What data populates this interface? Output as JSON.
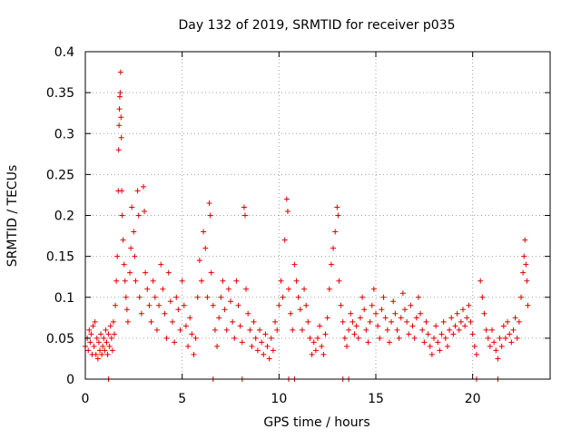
{
  "chart_data": {
    "type": "scatter",
    "title": "Day 132 of 2019, SRMTID for receiver p035",
    "xlabel": "GPS time / hours",
    "ylabel": "SRMTID / TECUs",
    "xlim": [
      0,
      24
    ],
    "ylim": [
      0,
      0.4
    ],
    "xticks": [
      0,
      5,
      10,
      15,
      20
    ],
    "yticks": [
      0,
      0.05,
      0.1,
      0.15,
      0.2,
      0.25,
      0.3,
      0.35,
      0.4
    ],
    "grid": true,
    "marker": "+",
    "color": "#e00000",
    "x_tick_labels": [
      "0",
      "5",
      "10",
      "15",
      "20"
    ],
    "y_tick_labels": [
      "0",
      "0.05",
      "0.1",
      "0.15",
      "0.2",
      "0.25",
      "0.3",
      "0.35",
      "0.4"
    ],
    "series": [
      {
        "name": "p035",
        "points": [
          [
            0.0,
            0.04
          ],
          [
            0.1,
            0.05
          ],
          [
            0.15,
            0.035
          ],
          [
            0.2,
            0.06
          ],
          [
            0.25,
            0.045
          ],
          [
            0.3,
            0.055
          ],
          [
            0.35,
            0.03
          ],
          [
            0.4,
            0.065
          ],
          [
            0.45,
            0.04
          ],
          [
            0.5,
            0.07
          ],
          [
            0.55,
            0.03
          ],
          [
            0.6,
            0.05
          ],
          [
            0.65,
            0.025
          ],
          [
            0.7,
            0.045
          ],
          [
            0.75,
            0.035
          ],
          [
            0.8,
            0.055
          ],
          [
            0.85,
            0.03
          ],
          [
            0.9,
            0.04
          ],
          [
            0.95,
            0.05
          ],
          [
            1.0,
            0.035
          ],
          [
            1.05,
            0.06
          ],
          [
            1.1,
            0.045
          ],
          [
            1.15,
            0.03
          ],
          [
            1.2,
            0.055
          ],
          [
            1.25,
            0.04
          ],
          [
            1.3,
            0.065
          ],
          [
            1.35,
            0.05
          ],
          [
            1.4,
            0.035
          ],
          [
            1.45,
            0.07
          ],
          [
            1.5,
            0.055
          ],
          [
            1.55,
            0.09
          ],
          [
            1.6,
            0.12
          ],
          [
            1.65,
            0.15
          ],
          [
            1.7,
            0.23
          ],
          [
            1.72,
            0.28
          ],
          [
            1.74,
            0.31
          ],
          [
            1.76,
            0.33
          ],
          [
            1.78,
            0.345
          ],
          [
            1.8,
            0.35
          ],
          [
            1.82,
            0.375
          ],
          [
            1.84,
            0.32
          ],
          [
            1.86,
            0.295
          ],
          [
            1.88,
            0.23
          ],
          [
            1.9,
            0.2
          ],
          [
            1.95,
            0.17
          ],
          [
            2.0,
            0.14
          ],
          [
            2.05,
            0.12
          ],
          [
            2.1,
            0.1
          ],
          [
            2.15,
            0.085
          ],
          [
            2.2,
            0.07
          ],
          [
            2.3,
            0.13
          ],
          [
            2.35,
            0.16
          ],
          [
            2.4,
            0.21
          ],
          [
            2.5,
            0.18
          ],
          [
            2.55,
            0.15
          ],
          [
            2.6,
            0.12
          ],
          [
            2.7,
            0.23
          ],
          [
            2.75,
            0.2
          ],
          [
            2.8,
            0.1
          ],
          [
            2.9,
            0.08
          ],
          [
            3.0,
            0.235
          ],
          [
            3.05,
            0.205
          ],
          [
            3.1,
            0.13
          ],
          [
            3.2,
            0.11
          ],
          [
            3.3,
            0.09
          ],
          [
            3.4,
            0.07
          ],
          [
            3.5,
            0.12
          ],
          [
            3.6,
            0.1
          ],
          [
            3.7,
            0.06
          ],
          [
            3.8,
            0.09
          ],
          [
            3.9,
            0.14
          ],
          [
            4.0,
            0.11
          ],
          [
            4.1,
            0.08
          ],
          [
            4.2,
            0.05
          ],
          [
            4.3,
            0.13
          ],
          [
            4.4,
            0.095
          ],
          [
            4.5,
            0.07
          ],
          [
            4.6,
            0.045
          ],
          [
            4.7,
            0.1
          ],
          [
            4.8,
            0.085
          ],
          [
            4.9,
            0.06
          ],
          [
            5.0,
            0.12
          ],
          [
            5.1,
            0.09
          ],
          [
            5.2,
            0.065
          ],
          [
            5.3,
            0.04
          ],
          [
            5.4,
            0.075
          ],
          [
            5.5,
            0.055
          ],
          [
            5.6,
            0.03
          ],
          [
            5.7,
            0.05
          ],
          [
            5.8,
            0.1
          ],
          [
            5.9,
            0.145
          ],
          [
            6.0,
            0.12
          ],
          [
            6.1,
            0.18
          ],
          [
            6.2,
            0.16
          ],
          [
            6.3,
            0.1
          ],
          [
            6.4,
            0.215
          ],
          [
            6.45,
            0.2
          ],
          [
            6.5,
            0.13
          ],
          [
            6.6,
            0.09
          ],
          [
            6.7,
            0.06
          ],
          [
            6.8,
            0.04
          ],
          [
            6.9,
            0.075
          ],
          [
            7.0,
            0.1
          ],
          [
            7.1,
            0.12
          ],
          [
            7.2,
            0.085
          ],
          [
            7.3,
            0.06
          ],
          [
            7.4,
            0.11
          ],
          [
            7.5,
            0.095
          ],
          [
            7.6,
            0.07
          ],
          [
            7.7,
            0.05
          ],
          [
            7.8,
            0.12
          ],
          [
            7.9,
            0.09
          ],
          [
            8.0,
            0.065
          ],
          [
            8.1,
            0.045
          ],
          [
            8.2,
            0.21
          ],
          [
            8.25,
            0.2
          ],
          [
            8.3,
            0.11
          ],
          [
            8.4,
            0.08
          ],
          [
            8.5,
            0.06
          ],
          [
            8.6,
            0.04
          ],
          [
            8.7,
            0.07
          ],
          [
            8.8,
            0.05
          ],
          [
            8.9,
            0.035
          ],
          [
            9.0,
            0.06
          ],
          [
            9.1,
            0.045
          ],
          [
            9.2,
            0.03
          ],
          [
            9.3,
            0.055
          ],
          [
            9.4,
            0.04
          ],
          [
            9.5,
            0.025
          ],
          [
            9.6,
            0.05
          ],
          [
            9.7,
            0.035
          ],
          [
            9.8,
            0.07
          ],
          [
            9.9,
            0.06
          ],
          [
            10.0,
            0.09
          ],
          [
            10.1,
            0.12
          ],
          [
            10.2,
            0.1
          ],
          [
            10.3,
            0.17
          ],
          [
            10.4,
            0.22
          ],
          [
            10.45,
            0.205
          ],
          [
            10.5,
            0.11
          ],
          [
            10.6,
            0.08
          ],
          [
            10.7,
            0.06
          ],
          [
            10.8,
            0.14
          ],
          [
            10.9,
            0.12
          ],
          [
            11.0,
            0.1
          ],
          [
            11.1,
            0.085
          ],
          [
            11.2,
            0.06
          ],
          [
            11.3,
            0.11
          ],
          [
            11.4,
            0.09
          ],
          [
            11.5,
            0.07
          ],
          [
            11.6,
            0.05
          ],
          [
            11.7,
            0.03
          ],
          [
            11.8,
            0.045
          ],
          [
            11.9,
            0.035
          ],
          [
            12.0,
            0.05
          ],
          [
            12.1,
            0.065
          ],
          [
            12.2,
            0.04
          ],
          [
            12.3,
            0.03
          ],
          [
            12.4,
            0.055
          ],
          [
            12.5,
            0.075
          ],
          [
            12.6,
            0.11
          ],
          [
            12.7,
            0.14
          ],
          [
            12.8,
            0.16
          ],
          [
            12.9,
            0.18
          ],
          [
            13.0,
            0.21
          ],
          [
            13.05,
            0.2
          ],
          [
            13.1,
            0.12
          ],
          [
            13.2,
            0.09
          ],
          [
            13.3,
            0.07
          ],
          [
            13.4,
            0.05
          ],
          [
            13.5,
            0.04
          ],
          [
            13.6,
            0.06
          ],
          [
            13.7,
            0.08
          ],
          [
            13.8,
            0.07
          ],
          [
            13.9,
            0.055
          ],
          [
            14.0,
            0.065
          ],
          [
            14.1,
            0.05
          ],
          [
            14.2,
            0.075
          ],
          [
            14.3,
            0.1
          ],
          [
            14.4,
            0.085
          ],
          [
            14.5,
            0.06
          ],
          [
            14.6,
            0.045
          ],
          [
            14.7,
            0.07
          ],
          [
            14.8,
            0.09
          ],
          [
            14.9,
            0.11
          ],
          [
            15.0,
            0.08
          ],
          [
            15.1,
            0.065
          ],
          [
            15.2,
            0.05
          ],
          [
            15.3,
            0.085
          ],
          [
            15.4,
            0.1
          ],
          [
            15.5,
            0.075
          ],
          [
            15.6,
            0.06
          ],
          [
            15.7,
            0.045
          ],
          [
            15.8,
            0.07
          ],
          [
            15.9,
            0.095
          ],
          [
            16.0,
            0.08
          ],
          [
            16.1,
            0.06
          ],
          [
            16.2,
            0.05
          ],
          [
            16.3,
            0.075
          ],
          [
            16.4,
            0.105
          ],
          [
            16.5,
            0.085
          ],
          [
            16.6,
            0.07
          ],
          [
            16.7,
            0.055
          ],
          [
            16.8,
            0.09
          ],
          [
            16.9,
            0.065
          ],
          [
            17.0,
            0.05
          ],
          [
            17.1,
            0.075
          ],
          [
            17.2,
            0.1
          ],
          [
            17.3,
            0.08
          ],
          [
            17.4,
            0.06
          ],
          [
            17.5,
            0.045
          ],
          [
            17.6,
            0.07
          ],
          [
            17.7,
            0.055
          ],
          [
            17.8,
            0.04
          ],
          [
            17.9,
            0.03
          ],
          [
            18.0,
            0.05
          ],
          [
            18.1,
            0.065
          ],
          [
            18.2,
            0.045
          ],
          [
            18.3,
            0.035
          ],
          [
            18.4,
            0.055
          ],
          [
            18.5,
            0.07
          ],
          [
            18.6,
            0.05
          ],
          [
            18.7,
            0.04
          ],
          [
            18.8,
            0.06
          ],
          [
            18.9,
            0.075
          ],
          [
            19.0,
            0.055
          ],
          [
            19.1,
            0.065
          ],
          [
            19.2,
            0.08
          ],
          [
            19.3,
            0.06
          ],
          [
            19.4,
            0.07
          ],
          [
            19.5,
            0.085
          ],
          [
            19.6,
            0.065
          ],
          [
            19.7,
            0.075
          ],
          [
            19.8,
            0.09
          ],
          [
            19.9,
            0.07
          ],
          [
            20.0,
            0.055
          ],
          [
            20.1,
            0.04
          ],
          [
            20.2,
            0.03
          ],
          [
            20.4,
            0.12
          ],
          [
            20.5,
            0.1
          ],
          [
            20.6,
            0.08
          ],
          [
            20.7,
            0.06
          ],
          [
            20.8,
            0.05
          ],
          [
            20.9,
            0.04
          ],
          [
            21.0,
            0.06
          ],
          [
            21.1,
            0.045
          ],
          [
            21.2,
            0.035
          ],
          [
            21.3,
            0.025
          ],
          [
            21.4,
            0.05
          ],
          [
            21.5,
            0.04
          ],
          [
            21.6,
            0.065
          ],
          [
            21.7,
            0.05
          ],
          [
            21.8,
            0.07
          ],
          [
            21.9,
            0.055
          ],
          [
            22.0,
            0.045
          ],
          [
            22.1,
            0.06
          ],
          [
            22.2,
            0.075
          ],
          [
            22.3,
            0.05
          ],
          [
            22.4,
            0.07
          ],
          [
            22.5,
            0.1
          ],
          [
            22.6,
            0.13
          ],
          [
            22.65,
            0.15
          ],
          [
            22.7,
            0.17
          ],
          [
            22.75,
            0.14
          ],
          [
            22.8,
            0.12
          ],
          [
            22.85,
            0.09
          ]
        ]
      }
    ],
    "zero_points_x": [
      1.2,
      6.6,
      8.1,
      10.5,
      10.8,
      13.3,
      13.6,
      20.2,
      21.3
    ]
  }
}
